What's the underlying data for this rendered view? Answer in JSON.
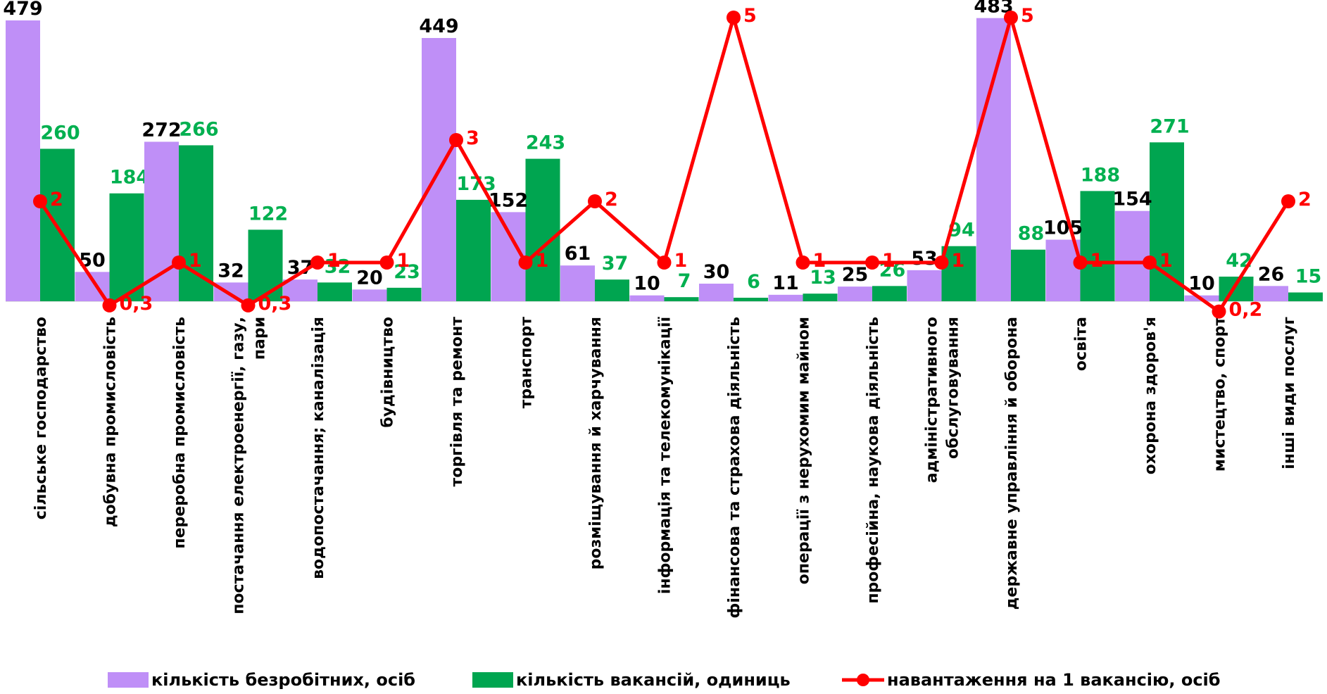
{
  "chart_data": {
    "type": "bar",
    "categories": [
      "сільське господарство",
      "добувна промисловість",
      "переробна промисловість",
      "постачання електроенергії, газу, пари",
      "водопостачання; каналізація",
      "будівництво",
      "торгівля та ремонт",
      "транспорт",
      "розміщування й харчування",
      "інформація та телекомунікації",
      "фінансова та страхова діяльність",
      "операції з нерухомим майном",
      "професійна, наукова діяльність",
      "адміністративного обслуговування",
      "державне управління й оборона",
      "освіта",
      "охорона здоров'я",
      "мистецтво, спорт",
      "інші види послуг"
    ],
    "category_lines": [
      [
        "сільське господарство"
      ],
      [
        "добувна промисловість"
      ],
      [
        "переробна промисловість"
      ],
      [
        "постачання електроенергії, газу,",
        "пари"
      ],
      [
        "водопостачання; каналізація"
      ],
      [
        "будівництво"
      ],
      [
        "торгівля та ремонт"
      ],
      [
        "транспорт"
      ],
      [
        "розміщування й харчування"
      ],
      [
        "інформація та телекомунікації"
      ],
      [
        "фінансова та страхова діяльність"
      ],
      [
        "операції з нерухомим майном"
      ],
      [
        "професійна, наукова діяльність"
      ],
      [
        "адміністративного",
        "обслуговування"
      ],
      [
        "державне управління й оборона"
      ],
      [
        "освіта"
      ],
      [
        "охорона здоров'я"
      ],
      [
        "мистецтво, спорт"
      ],
      [
        "інші види послуг"
      ]
    ],
    "series": [
      {
        "name": "кількість безробітних,  осіб",
        "kind": "bar",
        "color": "#bf8ff7",
        "label_color": "#000000",
        "values": [
          479,
          50,
          272,
          32,
          37,
          20,
          449,
          152,
          61,
          10,
          30,
          11,
          25,
          53,
          483,
          105,
          154,
          10,
          26
        ],
        "labels": [
          "479",
          "50",
          "272",
          "32",
          "37",
          "20",
          "449",
          "152",
          "61",
          "10",
          "30",
          "11",
          "25",
          "53",
          "483",
          "105",
          "154",
          "10",
          "26"
        ]
      },
      {
        "name": "кількість вакансій, одиниць",
        "kind": "bar",
        "color": "#00a550",
        "label_color": "#00b050",
        "values": [
          260,
          184,
          266,
          122,
          32,
          23,
          173,
          243,
          37,
          7,
          6,
          13,
          26,
          94,
          88,
          188,
          271,
          42,
          15
        ],
        "labels": [
          "260",
          "184",
          "266",
          "122",
          "32",
          "23",
          "173",
          "243",
          "37",
          "7",
          "6",
          "13",
          "26",
          "94",
          "88",
          "188",
          "271",
          "42",
          "15"
        ]
      },
      {
        "name": "навантаження на 1 вакансію, осіб",
        "kind": "line",
        "color": "#ff0000",
        "label_color": "#ff0000",
        "values": [
          2,
          0.3,
          1,
          0.3,
          1,
          1,
          3,
          1,
          2,
          1,
          5,
          1,
          1,
          1,
          5,
          1,
          1,
          0.2,
          2
        ],
        "labels": [
          "2",
          "0,3",
          "1",
          "0,3",
          "1",
          "1",
          "3",
          "1",
          "2",
          "1",
          "5",
          "1",
          "1",
          "1",
          "5",
          "1",
          "1",
          "0,2",
          "2"
        ]
      }
    ],
    "legend_position": "bottom",
    "grid": false
  }
}
